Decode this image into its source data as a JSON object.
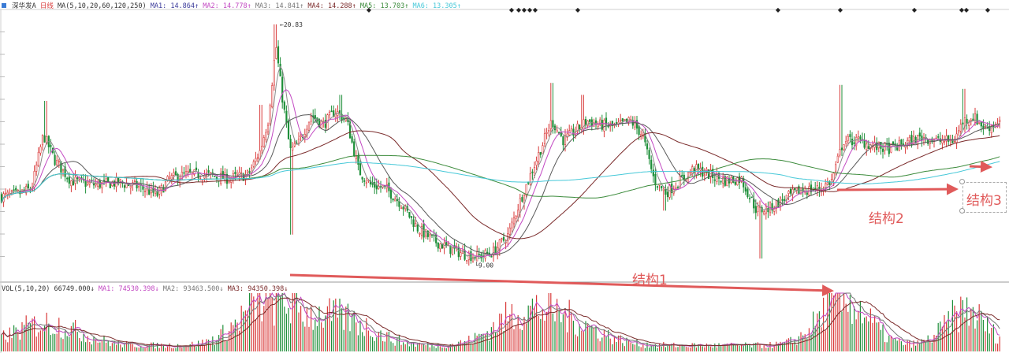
{
  "header": {
    "stock_name": "深华发A",
    "period": "日线",
    "ma_params": "MA(5,10,20,60,120,250)",
    "ma1": "MA1: 14.864↑",
    "ma2": "MA2: 14.778↑",
    "ma3": "MA3: 14.841↑",
    "ma4": "MA4: 14.288↑",
    "ma5": "MA5: 13.703↑",
    "ma6": "MA6: 13.305↑"
  },
  "vol_header": {
    "params": "VOL(5,10,20)",
    "vol": "66749.000↓",
    "ma1": "MA1: 74530.398↓",
    "ma2": "MA2: 93463.500↓",
    "ma3": "MA3: 94350.398↓"
  },
  "annotations": {
    "high": "20.83",
    "low": "9.00",
    "structure1": "结构1",
    "structure2": "结构2",
    "structure3": "结构3"
  },
  "colors": {
    "up": "#d93a3a",
    "down": "#1f8f3a",
    "ma1": "#8a8a8a",
    "ma2": "#c248c2",
    "ma3": "#5a5a5a",
    "ma4": "#7a2a2a",
    "ma5": "#3a8a3a",
    "ma6": "#45c8d8",
    "arrow": "#e05a5a"
  },
  "chart_data": {
    "type": "candlestick",
    "title": "深华发A 日线",
    "series_names": [
      "MA1",
      "MA2",
      "MA3",
      "MA4",
      "MA5",
      "MA6"
    ],
    "approx_close_path": [
      [
        0,
        12.2
      ],
      [
        20,
        12.3
      ],
      [
        40,
        12.6
      ],
      [
        55,
        15.3
      ],
      [
        70,
        14.0
      ],
      [
        90,
        13.0
      ],
      [
        120,
        12.8
      ],
      [
        150,
        12.9
      ],
      [
        175,
        12.7
      ],
      [
        200,
        12.3
      ],
      [
        215,
        13.1
      ],
      [
        235,
        13.3
      ],
      [
        260,
        13.3
      ],
      [
        290,
        13.1
      ],
      [
        315,
        13.3
      ],
      [
        330,
        14.5
      ],
      [
        340,
        16.0
      ],
      [
        350,
        19.8
      ],
      [
        358,
        17.2
      ],
      [
        368,
        14.5
      ],
      [
        378,
        14.8
      ],
      [
        395,
        16.3
      ],
      [
        410,
        15.8
      ],
      [
        425,
        16.5
      ],
      [
        440,
        16.0
      ],
      [
        455,
        13.5
      ],
      [
        470,
        12.8
      ],
      [
        490,
        12.6
      ],
      [
        510,
        11.8
      ],
      [
        530,
        10.6
      ],
      [
        550,
        10.0
      ],
      [
        570,
        9.6
      ],
      [
        590,
        9.3
      ],
      [
        605,
        9.2
      ],
      [
        625,
        9.4
      ],
      [
        645,
        10.3
      ],
      [
        660,
        12.0
      ],
      [
        680,
        14.0
      ],
      [
        700,
        16.0
      ],
      [
        715,
        15.0
      ],
      [
        730,
        15.5
      ],
      [
        745,
        16.0
      ],
      [
        760,
        15.8
      ],
      [
        780,
        15.7
      ],
      [
        800,
        16.0
      ],
      [
        815,
        15.3
      ],
      [
        830,
        13.0
      ],
      [
        845,
        12.4
      ],
      [
        860,
        12.9
      ],
      [
        880,
        13.6
      ],
      [
        900,
        13.3
      ],
      [
        920,
        13.0
      ],
      [
        940,
        13.1
      ],
      [
        960,
        11.5
      ],
      [
        975,
        11.6
      ],
      [
        995,
        12.1
      ],
      [
        1015,
        12.5
      ],
      [
        1040,
        12.6
      ],
      [
        1055,
        13.0
      ],
      [
        1070,
        15.0
      ],
      [
        1090,
        15.0
      ],
      [
        1110,
        14.7
      ],
      [
        1130,
        14.6
      ],
      [
        1150,
        14.9
      ],
      [
        1170,
        15.2
      ],
      [
        1190,
        15.0
      ],
      [
        1210,
        15.0
      ],
      [
        1222,
        16.0
      ],
      [
        1235,
        16.2
      ],
      [
        1250,
        15.6
      ],
      [
        1268,
        16.0
      ]
    ]
  }
}
